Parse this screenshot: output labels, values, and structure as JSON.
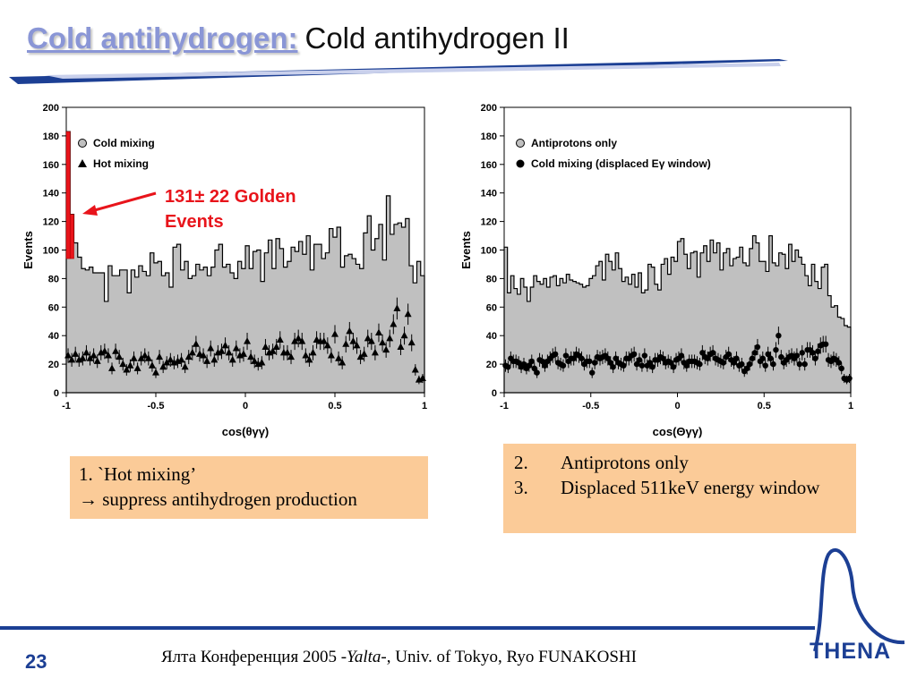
{
  "slide": {
    "title_link": "Cold antihydrogen:",
    "title_rest": "Cold antihydrogen II",
    "page_number": "23",
    "footer_pre": "Ялта Конференция 2005 -",
    "footer_italic": "Yalta-",
    "footer_post": ", Univ. of Tokyo,  Ryo FUNAKOSHI",
    "logo_text": "THENA",
    "colors": {
      "title_link": "#8a96d6",
      "accent_blue": "#1c3f94",
      "box_fill": "#fbcb98",
      "histogram_fill": "#c0c0c0",
      "golden_red": "#e8141b"
    }
  },
  "box1": {
    "line1": "1. `Hot mixing’",
    "arrow": "→",
    "line2": "suppress antihydrogen production"
  },
  "box2": {
    "items": [
      {
        "num": "2.",
        "text": "Antiprotons only"
      },
      {
        "num": "3.",
        "text": "Displaced 511keV energy window"
      }
    ]
  },
  "chart_data": [
    {
      "type": "histogram",
      "ylabel": "Events",
      "xlabel": "cos(θγγ)",
      "xlim": [
        -1,
        1
      ],
      "ylim": [
        0,
        200
      ],
      "xticks": [
        "-1",
        "-0.5",
        "0",
        "0.5",
        "1"
      ],
      "yticks": [
        "0",
        "20",
        "40",
        "60",
        "80",
        "100",
        "120",
        "140",
        "160",
        "180",
        "200"
      ],
      "legend_position": "top-left",
      "annotation": {
        "line1": "131± 22 Golden",
        "line2": "Events"
      },
      "series": [
        {
          "name": "Cold mixing",
          "kind": "filled-step",
          "values": [
            183,
            125,
            105,
            95,
            87,
            86,
            88,
            84,
            84,
            84,
            64,
            89,
            82,
            82,
            86,
            86,
            70,
            86,
            81,
            89,
            85,
            82,
            98,
            91,
            92,
            82,
            84,
            74,
            102,
            104,
            86,
            92,
            80,
            82,
            90,
            86,
            88,
            82,
            88,
            100,
            104,
            88,
            90,
            84,
            80,
            92,
            87,
            103,
            87,
            99,
            100,
            78,
            98,
            107,
            87,
            108,
            101,
            88,
            92,
            102,
            99,
            106,
            97,
            110,
            86,
            104,
            104,
            94,
            98,
            115,
            109,
            116,
            88,
            96,
            97,
            94,
            90,
            87,
            112,
            124,
            100,
            108,
            118,
            93,
            138,
            111,
            118,
            119,
            116,
            122,
            89,
            77,
            92,
            82
          ]
        },
        {
          "name": "Hot mixing",
          "kind": "triangle-points",
          "values": [
            26,
            23,
            27,
            23,
            24,
            28,
            24,
            26,
            22,
            28,
            29,
            26,
            17,
            29,
            25,
            20,
            16,
            19,
            24,
            17,
            24,
            26,
            24,
            19,
            14,
            25,
            18,
            21,
            23,
            21,
            22,
            23,
            18,
            25,
            28,
            34,
            27,
            26,
            22,
            31,
            23,
            28,
            29,
            33,
            28,
            23,
            31,
            26,
            27,
            36,
            25,
            22,
            20,
            21,
            32,
            28,
            29,
            32,
            37,
            28,
            28,
            25,
            36,
            38,
            36,
            26,
            23,
            28,
            37,
            36,
            36,
            33,
            26,
            41,
            24,
            21,
            34,
            43,
            36,
            33,
            25,
            27,
            38,
            36,
            28,
            42,
            35,
            30,
            38,
            48,
            59,
            32,
            40,
            55,
            35,
            16,
            9,
            10
          ]
        }
      ]
    },
    {
      "type": "histogram",
      "ylabel": "Events",
      "xlabel": "cos(Θγγ)",
      "xlim": [
        -1,
        1
      ],
      "ylim": [
        0,
        200
      ],
      "xticks": [
        "-1",
        "-0.5",
        "0",
        "0.5",
        "1"
      ],
      "yticks": [
        "0",
        "20",
        "40",
        "60",
        "80",
        "100",
        "120",
        "140",
        "160",
        "180",
        "200"
      ],
      "legend_position": "top-left",
      "series": [
        {
          "name": "Antiprotons only",
          "kind": "filled-step",
          "values": [
            102,
            70,
            82,
            73,
            69,
            80,
            74,
            64,
            74,
            82,
            78,
            76,
            80,
            74,
            81,
            82,
            75,
            80,
            77,
            83,
            79,
            78,
            77,
            76,
            74,
            75,
            80,
            82,
            89,
            92,
            79,
            97,
            92,
            86,
            98,
            87,
            78,
            81,
            76,
            83,
            74,
            84,
            70,
            72,
            90,
            88,
            76,
            72,
            90,
            94,
            83,
            95,
            92,
            106,
            108,
            97,
            87,
            98,
            99,
            81,
            98,
            103,
            92,
            107,
            98,
            105,
            86,
            98,
            101,
            89,
            94,
            95,
            102,
            91,
            89,
            101,
            110,
            105,
            92,
            92,
            85,
            110,
            91,
            89,
            98,
            97,
            87,
            104,
            92,
            100,
            95,
            90,
            82,
            75,
            90,
            78,
            73,
            88,
            90,
            68,
            60,
            61,
            53,
            52,
            47,
            46
          ]
        },
        {
          "name": "Cold mixing (displaced Eγ window)",
          "kind": "dot-points",
          "values": [
            19,
            18,
            24,
            22,
            22,
            21,
            18,
            20,
            17,
            19,
            22,
            17,
            14,
            23,
            22,
            19,
            22,
            24,
            26,
            27,
            21,
            20,
            19,
            26,
            22,
            24,
            24,
            27,
            26,
            24,
            20,
            22,
            22,
            14,
            21,
            25,
            24,
            25,
            26,
            24,
            21,
            18,
            24,
            21,
            20,
            19,
            24,
            24,
            26,
            27,
            20,
            23,
            19,
            26,
            19,
            21,
            18,
            23,
            23,
            25,
            24,
            21,
            22,
            21,
            18,
            23,
            24,
            26,
            21,
            19,
            22,
            22,
            22,
            21,
            20,
            28,
            25,
            24,
            27,
            28,
            24,
            23,
            22,
            21,
            25,
            27,
            23,
            21,
            24,
            19,
            20,
            15,
            17,
            20,
            24,
            28,
            32,
            22,
            24,
            19,
            27,
            24,
            20,
            30,
            40,
            25,
            21,
            23,
            25,
            26,
            24,
            26,
            20,
            28,
            20,
            30,
            30,
            28,
            24,
            29,
            33,
            34,
            34,
            23,
            22,
            24,
            23,
            21,
            17,
            10,
            9,
            10
          ]
        }
      ]
    }
  ]
}
